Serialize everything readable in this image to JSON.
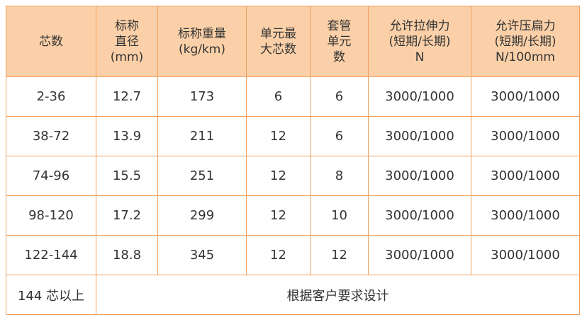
{
  "table": {
    "header": [
      [
        "芯数"
      ],
      [
        "标称",
        "直径",
        "(mm)"
      ],
      [
        "标称重量",
        "(kg/km)"
      ],
      [
        "单元最",
        "大芯数"
      ],
      [
        "套管",
        "单元",
        "数"
      ],
      [
        "允许拉伸力",
        "(短期/长期)",
        "N"
      ],
      [
        "允许压扁力",
        "(短期/长期)",
        "N/100mm"
      ]
    ],
    "rows": [
      [
        "2-36",
        "12.7",
        "173",
        "6",
        "6",
        "3000/1000",
        "3000/1000"
      ],
      [
        "38-72",
        "13.9",
        "211",
        "12",
        "6",
        "3000/1000",
        "3000/1000"
      ],
      [
        "74-96",
        "15.5",
        "251",
        "12",
        "8",
        "3000/1000",
        "3000/1000"
      ],
      [
        "98-120",
        "17.2",
        "299",
        "12",
        "10",
        "3000/1000",
        "3000/1000"
      ],
      [
        "122-144",
        "18.8",
        "345",
        "12",
        "12",
        "3000/1000",
        "3000/1000"
      ]
    ],
    "footer": [
      "144 芯以上",
      "根据客户要求设计"
    ]
  }
}
